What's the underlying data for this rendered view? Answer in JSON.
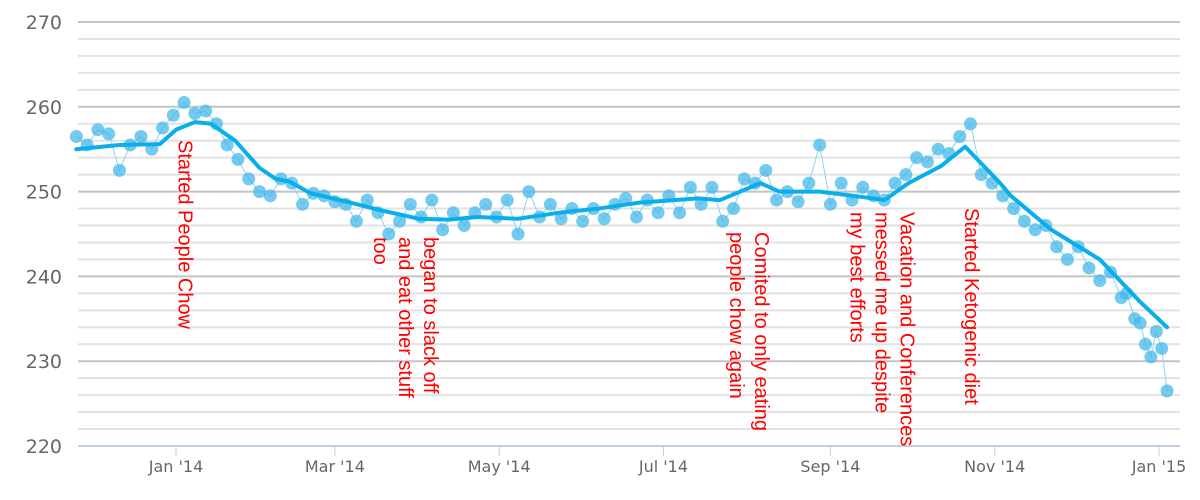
{
  "chart_data": {
    "type": "scatter",
    "title": "",
    "xlabel": "",
    "ylabel": "",
    "xlim": [
      "2013-11-25",
      "2015-01-08"
    ],
    "ylim": [
      220,
      270
    ],
    "y_major_ticks": [
      220,
      230,
      240,
      250,
      260,
      270
    ],
    "y_minor_step": 2,
    "x_ticks": [
      {
        "date": "2014-01-01",
        "label": "Jan '14"
      },
      {
        "date": "2014-03-01",
        "label": "Mar '14"
      },
      {
        "date": "2014-05-01",
        "label": "May '14"
      },
      {
        "date": "2014-07-01",
        "label": "Jul '14"
      },
      {
        "date": "2014-09-01",
        "label": "Sep '14"
      },
      {
        "date": "2014-11-01",
        "label": "Nov '14"
      },
      {
        "date": "2015-01-01",
        "label": "Jan '15"
      }
    ],
    "grid": true,
    "colors": {
      "points": "#45b8ea",
      "trend": "#0aaeea",
      "annotations": "#ff0000",
      "grid_major": "#c4c4c4",
      "grid_minor": "#e2e2e2",
      "axis": "#c0d0e0"
    },
    "series": [
      {
        "kind": "scatter",
        "points": [
          [
            "2013-11-25",
            256.5
          ],
          [
            "2013-11-29",
            255.5
          ],
          [
            "2013-12-03",
            257.3
          ],
          [
            "2013-12-07",
            256.8
          ],
          [
            "2013-12-11",
            252.5
          ],
          [
            "2013-12-15",
            255.5
          ],
          [
            "2013-12-19",
            256.5
          ],
          [
            "2013-12-23",
            255.0
          ],
          [
            "2013-12-27",
            257.5
          ],
          [
            "2013-12-31",
            259.0
          ],
          [
            "2014-01-04",
            260.5
          ],
          [
            "2014-01-08",
            259.2
          ],
          [
            "2014-01-12",
            259.5
          ],
          [
            "2014-01-16",
            258.0
          ],
          [
            "2014-01-20",
            255.5
          ],
          [
            "2014-01-24",
            253.8
          ],
          [
            "2014-01-28",
            251.5
          ],
          [
            "2014-02-01",
            250.0
          ],
          [
            "2014-02-05",
            249.5
          ],
          [
            "2014-02-09",
            251.5
          ],
          [
            "2014-02-13",
            251.0
          ],
          [
            "2014-02-17",
            248.5
          ],
          [
            "2014-02-21",
            249.8
          ],
          [
            "2014-02-25",
            249.5
          ],
          [
            "2014-03-01",
            248.8
          ],
          [
            "2014-03-05",
            248.5
          ],
          [
            "2014-03-09",
            246.5
          ],
          [
            "2014-03-13",
            249.0
          ],
          [
            "2014-03-17",
            247.5
          ],
          [
            "2014-03-21",
            245.0
          ],
          [
            "2014-03-25",
            246.5
          ],
          [
            "2014-03-29",
            248.5
          ],
          [
            "2014-04-02",
            247.0
          ],
          [
            "2014-04-06",
            249.0
          ],
          [
            "2014-04-10",
            245.5
          ],
          [
            "2014-04-14",
            247.5
          ],
          [
            "2014-04-18",
            246.0
          ],
          [
            "2014-04-22",
            247.5
          ],
          [
            "2014-04-26",
            248.5
          ],
          [
            "2014-04-30",
            247.0
          ],
          [
            "2014-05-04",
            249.0
          ],
          [
            "2014-05-08",
            245.0
          ],
          [
            "2014-05-12",
            250.0
          ],
          [
            "2014-05-16",
            247.0
          ],
          [
            "2014-05-20",
            248.5
          ],
          [
            "2014-05-24",
            246.8
          ],
          [
            "2014-05-28",
            248.0
          ],
          [
            "2014-06-01",
            246.5
          ],
          [
            "2014-06-05",
            248.0
          ],
          [
            "2014-06-09",
            246.8
          ],
          [
            "2014-06-13",
            248.5
          ],
          [
            "2014-06-17",
            249.2
          ],
          [
            "2014-06-21",
            247.0
          ],
          [
            "2014-06-25",
            249.0
          ],
          [
            "2014-06-29",
            247.5
          ],
          [
            "2014-07-03",
            249.5
          ],
          [
            "2014-07-07",
            247.5
          ],
          [
            "2014-07-11",
            250.5
          ],
          [
            "2014-07-15",
            248.5
          ],
          [
            "2014-07-19",
            250.5
          ],
          [
            "2014-07-23",
            246.5
          ],
          [
            "2014-07-27",
            248.0
          ],
          [
            "2014-07-31",
            251.5
          ],
          [
            "2014-08-04",
            251.0
          ],
          [
            "2014-08-08",
            252.5
          ],
          [
            "2014-08-12",
            249.0
          ],
          [
            "2014-08-16",
            250.0
          ],
          [
            "2014-08-20",
            248.8
          ],
          [
            "2014-08-24",
            251.0
          ],
          [
            "2014-08-28",
            255.5
          ],
          [
            "2014-09-01",
            248.5
          ],
          [
            "2014-09-05",
            251.0
          ],
          [
            "2014-09-09",
            249.0
          ],
          [
            "2014-09-13",
            250.5
          ],
          [
            "2014-09-17",
            249.5
          ],
          [
            "2014-09-21",
            249.0
          ],
          [
            "2014-09-25",
            251.0
          ],
          [
            "2014-09-29",
            252.0
          ],
          [
            "2014-10-03",
            254.0
          ],
          [
            "2014-10-07",
            253.5
          ],
          [
            "2014-10-11",
            255.0
          ],
          [
            "2014-10-15",
            254.5
          ],
          [
            "2014-10-19",
            256.5
          ],
          [
            "2014-10-23",
            258.0
          ],
          [
            "2014-10-27",
            252.0
          ],
          [
            "2014-10-31",
            251.0
          ],
          [
            "2014-11-04",
            249.5
          ],
          [
            "2014-11-08",
            248.0
          ],
          [
            "2014-11-12",
            246.5
          ],
          [
            "2014-11-16",
            245.5
          ],
          [
            "2014-11-20",
            246.0
          ],
          [
            "2014-11-24",
            243.5
          ],
          [
            "2014-11-28",
            242.0
          ],
          [
            "2014-12-02",
            243.5
          ],
          [
            "2014-12-06",
            241.0
          ],
          [
            "2014-12-10",
            239.5
          ],
          [
            "2014-12-14",
            240.5
          ],
          [
            "2014-12-18",
            237.5
          ],
          [
            "2014-12-20",
            238.0
          ],
          [
            "2014-12-23",
            235.0
          ],
          [
            "2014-12-25",
            234.5
          ],
          [
            "2014-12-27",
            232.0
          ],
          [
            "2014-12-29",
            230.5
          ],
          [
            "2014-12-31",
            233.5
          ],
          [
            "2015-01-02",
            231.5
          ],
          [
            "2015-01-04",
            226.5
          ]
        ]
      },
      {
        "kind": "trend-line",
        "points": [
          [
            "2013-11-25",
            255.0
          ],
          [
            "2013-12-11",
            255.5
          ],
          [
            "2013-12-26",
            255.6
          ],
          [
            "2014-01-01",
            257.3
          ],
          [
            "2014-01-08",
            258.2
          ],
          [
            "2014-01-14",
            258.0
          ],
          [
            "2014-01-23",
            256.0
          ],
          [
            "2014-02-01",
            252.8
          ],
          [
            "2014-02-07",
            251.5
          ],
          [
            "2014-02-12",
            251.2
          ],
          [
            "2014-02-20",
            249.8
          ],
          [
            "2014-03-03",
            249.0
          ],
          [
            "2014-03-18",
            247.8
          ],
          [
            "2014-04-01",
            246.8
          ],
          [
            "2014-04-12",
            246.7
          ],
          [
            "2014-04-23",
            247.0
          ],
          [
            "2014-05-08",
            246.8
          ],
          [
            "2014-05-23",
            247.5
          ],
          [
            "2014-06-07",
            248.0
          ],
          [
            "2014-06-22",
            248.7
          ],
          [
            "2014-07-14",
            249.2
          ],
          [
            "2014-07-22",
            249.0
          ],
          [
            "2014-08-06",
            251.0
          ],
          [
            "2014-08-13",
            250.0
          ],
          [
            "2014-08-28",
            250.0
          ],
          [
            "2014-09-12",
            249.4
          ],
          [
            "2014-09-21",
            249.0
          ],
          [
            "2014-09-30",
            251.0
          ],
          [
            "2014-10-12",
            253.0
          ],
          [
            "2014-10-21",
            255.3
          ],
          [
            "2014-11-03",
            251.0
          ],
          [
            "2014-11-07",
            249.5
          ],
          [
            "2014-11-22",
            245.5
          ],
          [
            "2014-12-10",
            242.0
          ],
          [
            "2014-12-25",
            237.0
          ],
          [
            "2015-01-04",
            234.0
          ]
        ]
      }
    ],
    "annotations": [
      {
        "date": "2014-01-02",
        "lines": [
          "Started People Chow"
        ]
      },
      {
        "date": "2014-04-03",
        "lines": [
          "began to slack off",
          "and eat other stuff",
          "too"
        ]
      },
      {
        "date": "2014-08-04",
        "lines": [
          "Comited to only eating",
          "people chow again"
        ]
      },
      {
        "date": "2014-09-27",
        "lines": [
          "Vacation and Conferences",
          "messed me up despite",
          "my best efforts"
        ]
      },
      {
        "date": "2014-10-21",
        "lines": [
          "Started Ketogenic diet"
        ]
      }
    ]
  }
}
